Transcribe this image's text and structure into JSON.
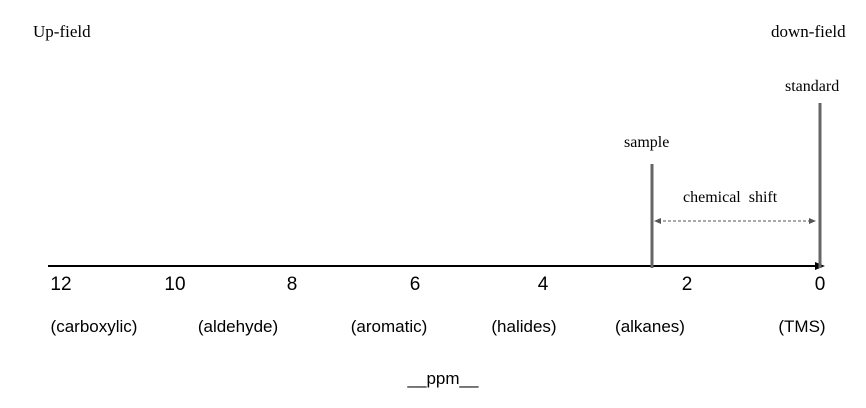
{
  "corners": {
    "left": "Up-field",
    "right": "down-field"
  },
  "markers": {
    "standard": "standard",
    "sample": "sample",
    "shift": "chemical  shift"
  },
  "axis": {
    "ticks": [
      "12",
      "10",
      "8",
      "6",
      "4",
      "2",
      "0"
    ],
    "groups": [
      "(carboxylic)",
      "(aldehyde)",
      "(aromatic)",
      "(halides)",
      "(alkanes)",
      "(TMS)"
    ],
    "unit": "__ppm__"
  },
  "colors": {
    "axis": "#000000",
    "marker_lines": "#666666",
    "shift_arrow": "#555555"
  }
}
